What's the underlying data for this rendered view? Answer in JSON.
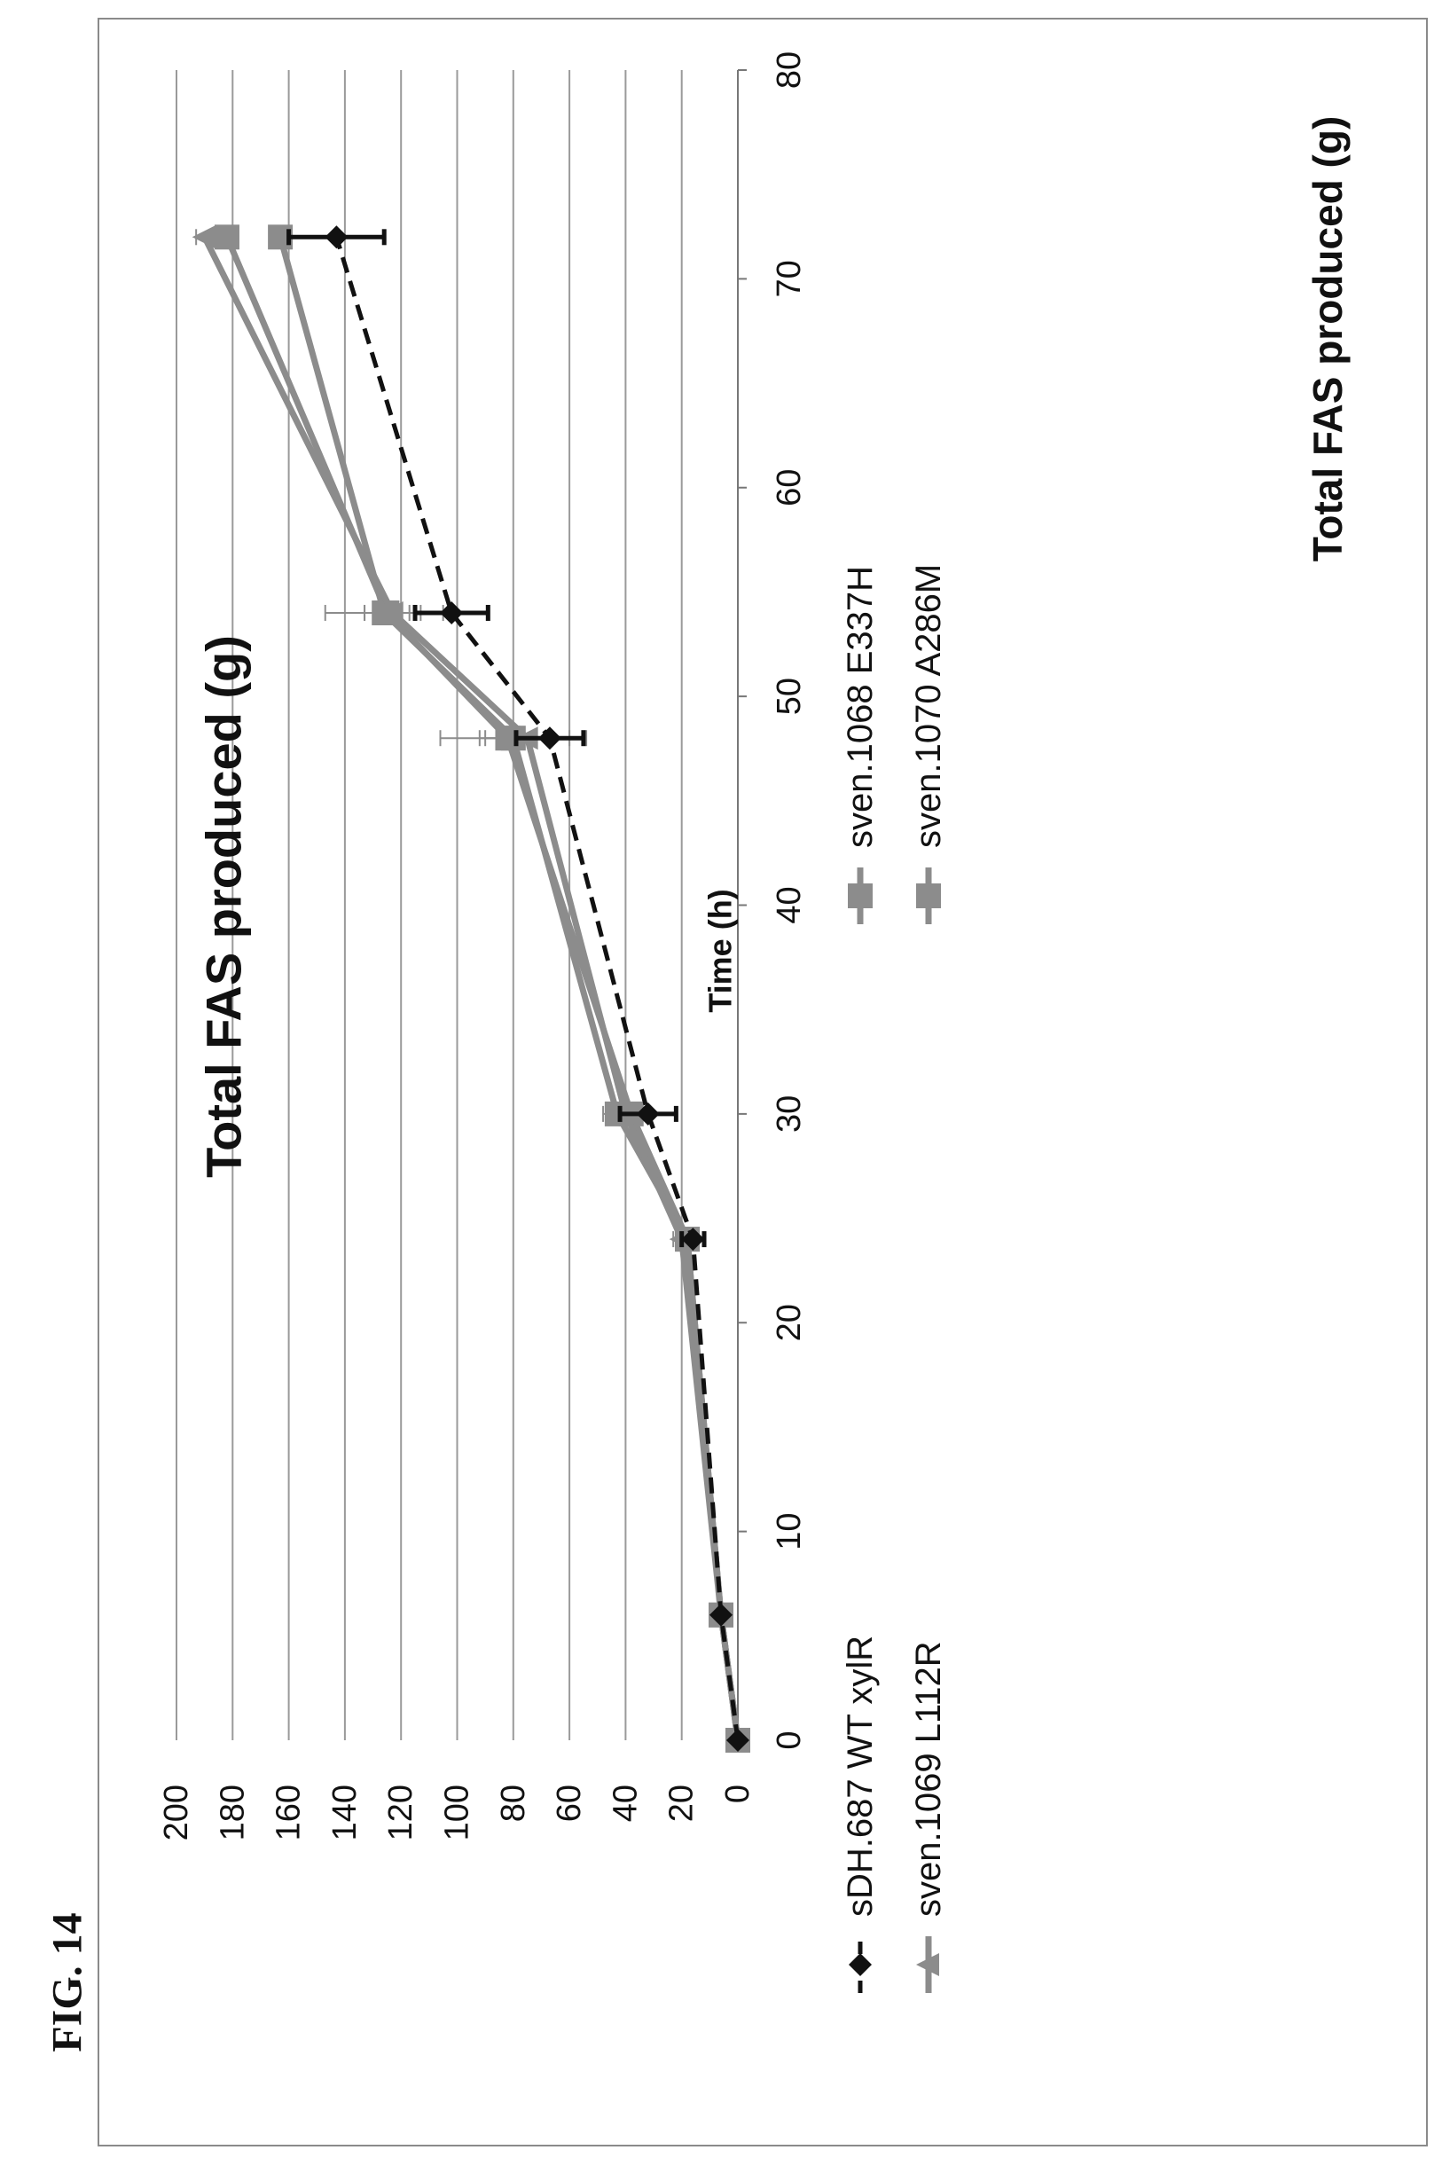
{
  "figure_label": "FIG. 14",
  "chart_data": {
    "type": "line",
    "title": "Total FAS produced (g)",
    "xlabel": "Time (h)",
    "ylabel": "Total FAS produced (g)",
    "xlim": [
      0,
      80
    ],
    "ylim": [
      0,
      200
    ],
    "xticks": [
      "0",
      "10",
      "20",
      "30",
      "40",
      "50",
      "60",
      "70",
      "80"
    ],
    "yticks": [
      "0",
      "20",
      "40",
      "60",
      "80",
      "100",
      "120",
      "140",
      "160",
      "180",
      "200"
    ],
    "grid": "horizontal",
    "legend_position": "bottom",
    "colors": {
      "wt": "#111111",
      "series": "#8c8c8c",
      "grid": "#9a9a9a"
    },
    "series": [
      {
        "name": "sDH.687 WT xylR",
        "marker": "diamond",
        "line": "dashed",
        "x": [
          0,
          6,
          24,
          30,
          48,
          54,
          72
        ],
        "y": [
          0,
          6,
          16,
          32,
          67,
          102,
          143
        ],
        "err": [
          0,
          0,
          4,
          10,
          12,
          13,
          17
        ]
      },
      {
        "name": "sven.1068 E337H",
        "marker": "square",
        "line": "solid",
        "x": [
          0,
          6,
          24,
          30,
          48,
          54,
          72
        ],
        "y": [
          0,
          6,
          18,
          43,
          80,
          126,
          163
        ],
        "err": [
          0,
          0,
          3,
          5,
          26,
          21,
          0
        ]
      },
      {
        "name": "sven.1069 L112R",
        "marker": "triangle",
        "line": "solid",
        "x": [
          0,
          6,
          24,
          30,
          48,
          54,
          72
        ],
        "y": [
          0,
          6,
          20,
          40,
          75,
          123,
          190
        ],
        "err": [
          0,
          0,
          3,
          5,
          15,
          10,
          3
        ]
      },
      {
        "name": "sven.1070 A286M",
        "marker": "square",
        "line": "solid",
        "x": [
          0,
          6,
          24,
          30,
          48,
          54,
          72
        ],
        "y": [
          0,
          6,
          18,
          38,
          82,
          125,
          182
        ],
        "err": [
          0,
          0,
          3,
          5,
          10,
          8,
          2
        ]
      }
    ]
  }
}
